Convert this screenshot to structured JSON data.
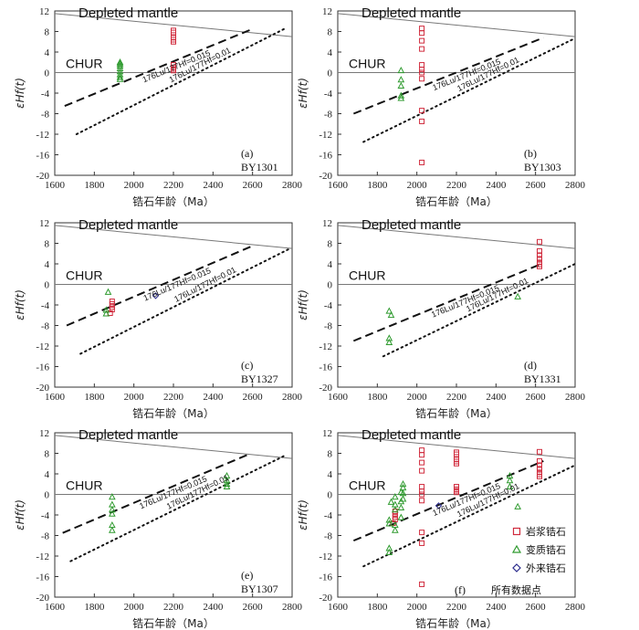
{
  "chart_data": {
    "type": "scatter",
    "shared": {
      "xlabel": "锆石年龄（Ma）",
      "ylabel": "εHf(t)",
      "xlim": [
        1600,
        2800
      ],
      "ylim": [
        -20,
        12
      ],
      "xticks": [
        1600,
        1800,
        2000,
        2200,
        2400,
        2600,
        2800
      ],
      "yticks": [
        12,
        8,
        4,
        0,
        -4,
        -8,
        -12,
        -16,
        -20
      ],
      "depleted_mantle_label": "Depleted mantle",
      "chur_label": "CHUR",
      "lu_labels": {
        "a": "176Lu/177Hf=0.015",
        "b": "176Lu/177Hf=0.01"
      },
      "reference_lines": {
        "depleted_mantle": [
          [
            1600,
            11.5
          ],
          [
            2800,
            7.0
          ]
        ],
        "chur": [
          [
            1600,
            0
          ],
          [
            2800,
            0
          ]
        ]
      },
      "series_colors": {
        "magmatic": "#d02a3c",
        "metamorphic": "#2e9a2e",
        "xenocrystic": "#2b2b8c"
      }
    },
    "panels": [
      {
        "id": "a",
        "letter": "(a)",
        "sample": "BY1301",
        "lu015_line": [
          [
            1650,
            -6.5
          ],
          [
            2600,
            8.5
          ]
        ],
        "lu01_line": [
          [
            1710,
            -12
          ],
          [
            2760,
            8.5
          ]
        ],
        "magmatic": [
          [
            2200,
            8.2
          ],
          [
            2200,
            7.8
          ],
          [
            2200,
            6.8
          ],
          [
            2200,
            6.4
          ],
          [
            2200,
            6.0
          ],
          [
            2200,
            1.5
          ],
          [
            2200,
            1.0
          ],
          [
            2200,
            0.7
          ],
          [
            2200,
            0.4
          ]
        ],
        "metamorphic": [
          [
            1930,
            2.0
          ],
          [
            1930,
            1.7
          ],
          [
            1930,
            1.3
          ],
          [
            1930,
            0.8
          ],
          [
            1930,
            0.2
          ],
          [
            1930,
            -0.4
          ],
          [
            1930,
            -0.9
          ],
          [
            1930,
            -1.3
          ]
        ],
        "xenocrystic": []
      },
      {
        "id": "b",
        "letter": "(b)",
        "sample": "BY1303",
        "lu015_line": [
          [
            1680,
            -8.0
          ],
          [
            2640,
            6.8
          ]
        ],
        "lu01_line": [
          [
            1730,
            -13.5
          ],
          [
            2790,
            6.5
          ]
        ],
        "magmatic": [
          [
            2025,
            8.6
          ],
          [
            2025,
            7.7
          ],
          [
            2025,
            6.2
          ],
          [
            2025,
            4.6
          ],
          [
            2025,
            1.5
          ],
          [
            2025,
            0.6
          ],
          [
            2025,
            0.0
          ],
          [
            2025,
            -1.2
          ],
          [
            2025,
            -7.4
          ],
          [
            2025,
            -9.5
          ],
          [
            2025,
            -17.5
          ]
        ],
        "metamorphic": [
          [
            1920,
            0.4
          ],
          [
            1920,
            -1.4
          ],
          [
            1920,
            -2.6
          ],
          [
            1920,
            -4.5
          ],
          [
            1920,
            -5.0
          ]
        ],
        "xenocrystic": []
      },
      {
        "id": "c",
        "letter": "(c)",
        "sample": "BY1327",
        "lu015_line": [
          [
            1660,
            -8.0
          ],
          [
            2600,
            7.5
          ]
        ],
        "lu01_line": [
          [
            1730,
            -13.5
          ],
          [
            2790,
            7.0
          ]
        ],
        "magmatic": [
          [
            1890,
            -3.3
          ],
          [
            1890,
            -3.8
          ],
          [
            1890,
            -4.4
          ],
          [
            1890,
            -4.9
          ],
          [
            1880,
            -5.6
          ]
        ],
        "metamorphic": [
          [
            1870,
            -1.5
          ],
          [
            1860,
            -5.0
          ],
          [
            1860,
            -5.7
          ]
        ],
        "xenocrystic": [
          [
            2110,
            -2.2
          ]
        ]
      },
      {
        "id": "d",
        "letter": "(d)",
        "sample": "BY1331",
        "lu015_line": [
          [
            1680,
            -11.0
          ],
          [
            2630,
            4.0
          ]
        ],
        "lu01_line": [
          [
            1830,
            -14.0
          ],
          [
            2800,
            4.0
          ]
        ],
        "magmatic": [
          [
            2620,
            8.3
          ],
          [
            2620,
            6.5
          ],
          [
            2620,
            5.7
          ],
          [
            2620,
            5.0
          ],
          [
            2620,
            4.3
          ],
          [
            2620,
            3.9
          ],
          [
            2620,
            3.5
          ]
        ],
        "metamorphic": [
          [
            1860,
            -5.2
          ],
          [
            1870,
            -6.0
          ],
          [
            1860,
            -10.5
          ],
          [
            1860,
            -11.3
          ],
          [
            2510,
            -2.4
          ]
        ],
        "xenocrystic": []
      },
      {
        "id": "e",
        "letter": "(e)",
        "sample": "BY1307",
        "lu015_line": [
          [
            1640,
            -7.5
          ],
          [
            2580,
            7.8
          ]
        ],
        "lu01_line": [
          [
            1680,
            -13.0
          ],
          [
            2760,
            7.5
          ]
        ],
        "magmatic": [],
        "metamorphic": [
          [
            1890,
            -0.5
          ],
          [
            1890,
            -2.0
          ],
          [
            1890,
            -3.0
          ],
          [
            1890,
            -3.8
          ],
          [
            1890,
            -6.0
          ],
          [
            1890,
            -7.0
          ],
          [
            2470,
            3.6
          ],
          [
            2470,
            2.7
          ],
          [
            2470,
            2.0
          ],
          [
            2470,
            1.5
          ]
        ],
        "xenocrystic": []
      },
      {
        "id": "f",
        "letter": "(f)",
        "sample": "所有数据点",
        "lu015_line": [
          [
            1680,
            -9.0
          ],
          [
            2640,
            6.5
          ]
        ],
        "lu01_line": [
          [
            1730,
            -14.0
          ],
          [
            2790,
            5.5
          ]
        ],
        "magmatic": [
          [
            2025,
            8.6
          ],
          [
            2025,
            7.7
          ],
          [
            2025,
            6.2
          ],
          [
            2025,
            4.6
          ],
          [
            2025,
            1.5
          ],
          [
            2025,
            0.6
          ],
          [
            2025,
            0.0
          ],
          [
            2025,
            -1.2
          ],
          [
            2025,
            -7.4
          ],
          [
            2025,
            -9.5
          ],
          [
            2025,
            -17.5
          ],
          [
            2200,
            8.2
          ],
          [
            2200,
            7.8
          ],
          [
            2200,
            6.8
          ],
          [
            2200,
            6.4
          ],
          [
            2200,
            6.0
          ],
          [
            2200,
            1.5
          ],
          [
            2200,
            1.0
          ],
          [
            2200,
            0.7
          ],
          [
            2200,
            0.4
          ],
          [
            1890,
            -3.3
          ],
          [
            1890,
            -3.8
          ],
          [
            1890,
            -4.4
          ],
          [
            1890,
            -4.9
          ],
          [
            1880,
            -5.6
          ],
          [
            2620,
            8.3
          ],
          [
            2620,
            6.5
          ],
          [
            2620,
            5.7
          ],
          [
            2620,
            5.0
          ],
          [
            2620,
            4.3
          ],
          [
            2620,
            3.9
          ],
          [
            2620,
            3.5
          ]
        ],
        "metamorphic": [
          [
            1930,
            2.0
          ],
          [
            1930,
            1.3
          ],
          [
            1930,
            0.2
          ],
          [
            1930,
            -0.9
          ],
          [
            1920,
            0.4
          ],
          [
            1920,
            -1.4
          ],
          [
            1920,
            -2.6
          ],
          [
            1920,
            -4.5
          ],
          [
            1870,
            -1.5
          ],
          [
            1860,
            -5.0
          ],
          [
            1860,
            -5.7
          ],
          [
            1860,
            -10.5
          ],
          [
            1860,
            -11.3
          ],
          [
            1890,
            -0.5
          ],
          [
            1890,
            -2.0
          ],
          [
            1890,
            -3.0
          ],
          [
            1890,
            -6.0
          ],
          [
            1890,
            -7.0
          ],
          [
            2470,
            3.6
          ],
          [
            2470,
            2.7
          ],
          [
            2470,
            1.5
          ],
          [
            2510,
            -2.4
          ]
        ],
        "xenocrystic": [
          [
            2110,
            -2.2
          ]
        ],
        "legend": {
          "magmatic": "岩浆锆石",
          "metamorphic": "变质锆石",
          "xenocrystic": "外来锆石"
        }
      }
    ]
  }
}
